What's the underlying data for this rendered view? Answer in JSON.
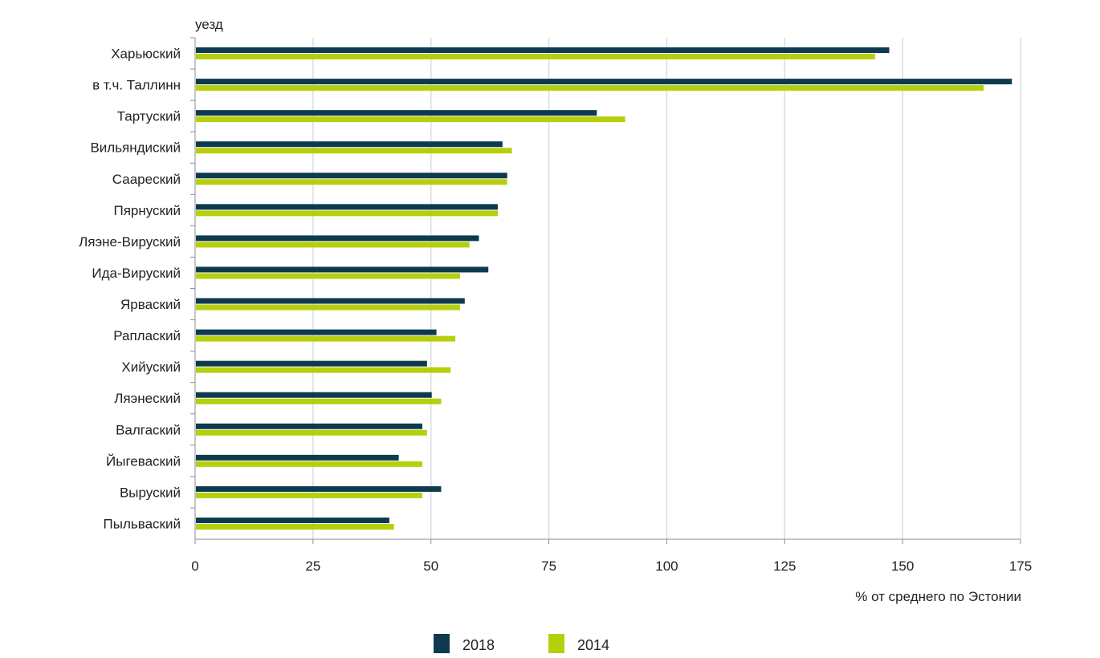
{
  "chart_data": {
    "type": "bar",
    "orientation": "horizontal",
    "ylabel": "уезд",
    "xlabel": "% от среднего по Эстонии",
    "xlim": [
      0,
      175
    ],
    "xticks": [
      "0",
      "25",
      "50",
      "75",
      "100",
      "125",
      "150",
      "175"
    ],
    "grid": true,
    "legend_position": "bottom",
    "categories": [
      "Харьюский",
      "в т.ч. Таллинн",
      "Тартуский",
      "Вильяндиский",
      "Саареский",
      "Пярнуский",
      "Ляэне-Вируский",
      "Ида-Вируский",
      "Ярваский",
      "Раплаский",
      "Хийуский",
      "Ляэнеский",
      "Валгаский",
      "Йыгеваский",
      "Выруский",
      "Пыльваский"
    ],
    "series": [
      {
        "name": "2018",
        "color": "#0d3a4e",
        "values": [
          147,
          173,
          85,
          65,
          66,
          64,
          60,
          62,
          57,
          51,
          49,
          50,
          48,
          43,
          52,
          41
        ]
      },
      {
        "name": "2014",
        "color": "#b5cf0c",
        "values": [
          144,
          167,
          91,
          67,
          66,
          64,
          58,
          56,
          56,
          55,
          54,
          52,
          49,
          48,
          48,
          42
        ]
      }
    ]
  }
}
